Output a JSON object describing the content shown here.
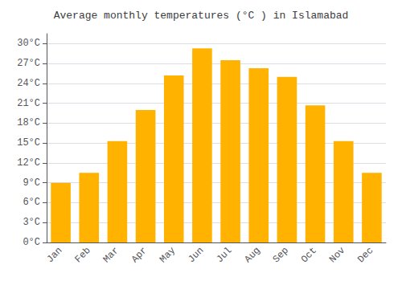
{
  "chart_data": {
    "type": "bar",
    "title": "Average monthly temperatures (°C ) in Islamabad",
    "categories": [
      "Jan",
      "Feb",
      "Mar",
      "Apr",
      "May",
      "Jun",
      "Jul",
      "Aug",
      "Sep",
      "Oct",
      "Nov",
      "Dec"
    ],
    "values": [
      9.0,
      10.5,
      15.3,
      20.0,
      25.2,
      29.3,
      27.5,
      26.3,
      25.0,
      20.7,
      15.3,
      10.5
    ],
    "color": "#FFB300",
    "ylim": [
      0,
      31.5
    ],
    "yticks": [
      {
        "value": 0,
        "label": "0°C"
      },
      {
        "value": 3,
        "label": "3°C"
      },
      {
        "value": 6,
        "label": "6°C"
      },
      {
        "value": 9,
        "label": "9°C"
      },
      {
        "value": 12,
        "label": "12°C"
      },
      {
        "value": 15,
        "label": "15°C"
      },
      {
        "value": 18,
        "label": "18°C"
      },
      {
        "value": 21,
        "label": "21°C"
      },
      {
        "value": 24,
        "label": "24°C"
      },
      {
        "value": 27,
        "label": "27°C"
      },
      {
        "value": 30,
        "label": "30°C"
      }
    ],
    "grid": true
  }
}
